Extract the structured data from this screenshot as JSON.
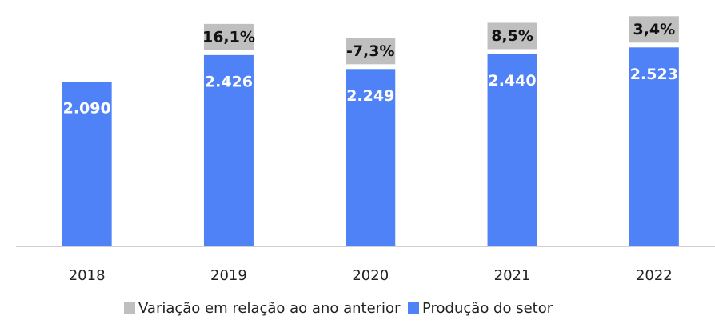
{
  "chart_data": {
    "type": "bar",
    "categories": [
      "2018",
      "2019",
      "2020",
      "2021",
      "2022"
    ],
    "series": [
      {
        "name": "Variação em relação ao ano anterior",
        "color": "#bfbfbf",
        "values": [
          null,
          16.1,
          -7.3,
          8.5,
          3.4
        ],
        "value_labels": [
          null,
          "16,1%",
          "-7,3%",
          "8,5%",
          "3,4%"
        ]
      },
      {
        "name": "Produção do setor",
        "color": "#4f81f7",
        "values": [
          2090,
          2426,
          2249,
          2440,
          2523
        ],
        "value_labels": [
          "2.090",
          "2.426",
          "2.249",
          "2.440",
          "2.523"
        ]
      }
    ],
    "ylim": [
      0,
      2800
    ],
    "legend": "bottom"
  }
}
